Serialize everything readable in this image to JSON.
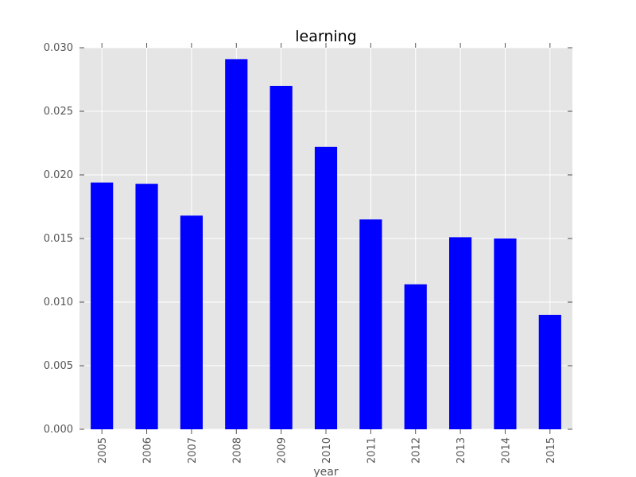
{
  "chart_data": {
    "type": "bar",
    "title": "learning",
    "xlabel": "year",
    "ylabel": "",
    "categories": [
      "2005",
      "2006",
      "2007",
      "2008",
      "2009",
      "2010",
      "2011",
      "2012",
      "2013",
      "2014",
      "2015"
    ],
    "values": [
      0.0194,
      0.0193,
      0.0168,
      0.0291,
      0.027,
      0.0222,
      0.0165,
      0.0114,
      0.0151,
      0.015,
      0.009
    ],
    "ylim": [
      0,
      0.03
    ],
    "yticks": [
      "0.000",
      "0.005",
      "0.010",
      "0.015",
      "0.020",
      "0.025",
      "0.030"
    ],
    "grid": true,
    "legend": "none",
    "colors": {
      "bar": "#0000ff",
      "plot_background": "#e5e5e5",
      "grid": "#ffffff",
      "tick_label": "#555555"
    }
  }
}
